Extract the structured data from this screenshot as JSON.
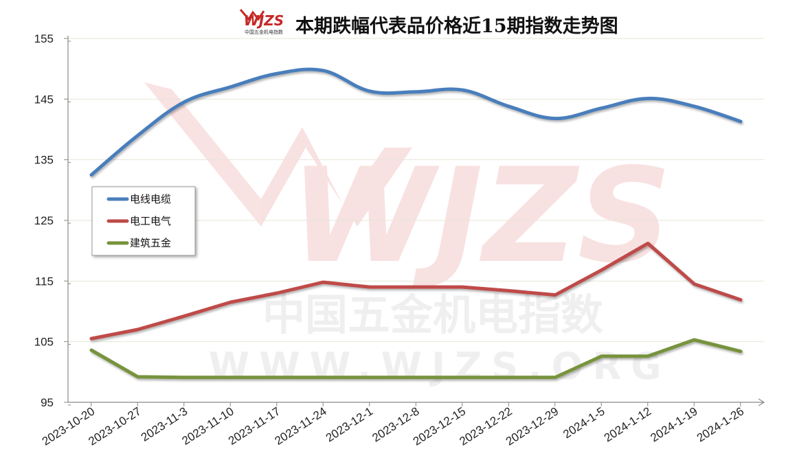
{
  "chart_data": {
    "type": "line",
    "title": "本期跌幅代表品价格近15期指数走势图",
    "logo_text": "WJZS",
    "logo_subtext": "中国五金机电指数",
    "watermark": {
      "main": "WJZS",
      "cn": "中国五金机电指数",
      "url": "WWW.WJZS.ORG"
    },
    "categories": [
      "2023-10-20",
      "2023-10-27",
      "2023-11-3",
      "2023-11-10",
      "2023-11-17",
      "2023-11-24",
      "2023-12-1",
      "2023-12-8",
      "2023-12-15",
      "2023-12-22",
      "2023-12-29",
      "2024-1-5",
      "2024-1-12",
      "2024-1-19",
      "2024-1-26"
    ],
    "yticks": [
      "155",
      "145",
      "135",
      "125",
      "115",
      "105",
      "95"
    ],
    "ylim": [
      95,
      155
    ],
    "grid": true,
    "legend_position": "left",
    "series": [
      {
        "name": "电线电缆",
        "color": "#4a7ebb",
        "values": [
          132.5,
          139.0,
          144.5,
          147.0,
          149.2,
          149.7,
          146.3,
          146.2,
          146.5,
          143.8,
          141.8,
          143.5,
          145.1,
          143.8,
          141.3
        ]
      },
      {
        "name": "电工电气",
        "color": "#be4b48",
        "values": [
          105.5,
          107.0,
          109.2,
          111.5,
          113.0,
          114.8,
          114.0,
          114.0,
          114.0,
          113.4,
          112.7,
          116.8,
          121.2,
          114.5,
          111.9
        ]
      },
      {
        "name": "建筑五金",
        "color": "#77933c",
        "values": [
          103.6,
          99.2,
          99.1,
          99.1,
          99.1,
          99.1,
          99.1,
          99.1,
          99.1,
          99.1,
          99.1,
          102.6,
          102.6,
          105.3,
          103.4
        ]
      }
    ]
  }
}
